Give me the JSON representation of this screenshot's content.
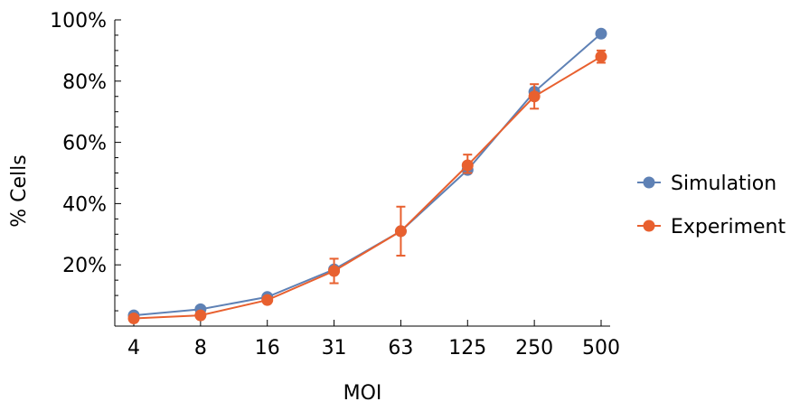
{
  "chart_data": {
    "type": "line",
    "xlabel": "MOI",
    "ylabel": "% Cells",
    "categories": [
      "4",
      "8",
      "16",
      "31",
      "63",
      "125",
      "250",
      "500"
    ],
    "yticks": [
      "20%",
      "40%",
      "60%",
      "80%",
      "100%"
    ],
    "ylim": [
      0,
      100
    ],
    "grid": false,
    "legend_position": "right",
    "series": [
      {
        "name": "Simulation",
        "color": "#5e81b5",
        "values": [
          3.5,
          5.5,
          9.5,
          18.5,
          31,
          51,
          76.5,
          95.5
        ]
      },
      {
        "name": "Experiment",
        "color": "#e8602f",
        "values": [
          2.5,
          3.5,
          8.5,
          18,
          31,
          52.5,
          75,
          88
        ],
        "error_low": [
          null,
          null,
          null,
          14,
          23,
          50,
          71,
          86
        ],
        "error_high": [
          null,
          null,
          null,
          22,
          39,
          56,
          79,
          90
        ]
      }
    ]
  }
}
